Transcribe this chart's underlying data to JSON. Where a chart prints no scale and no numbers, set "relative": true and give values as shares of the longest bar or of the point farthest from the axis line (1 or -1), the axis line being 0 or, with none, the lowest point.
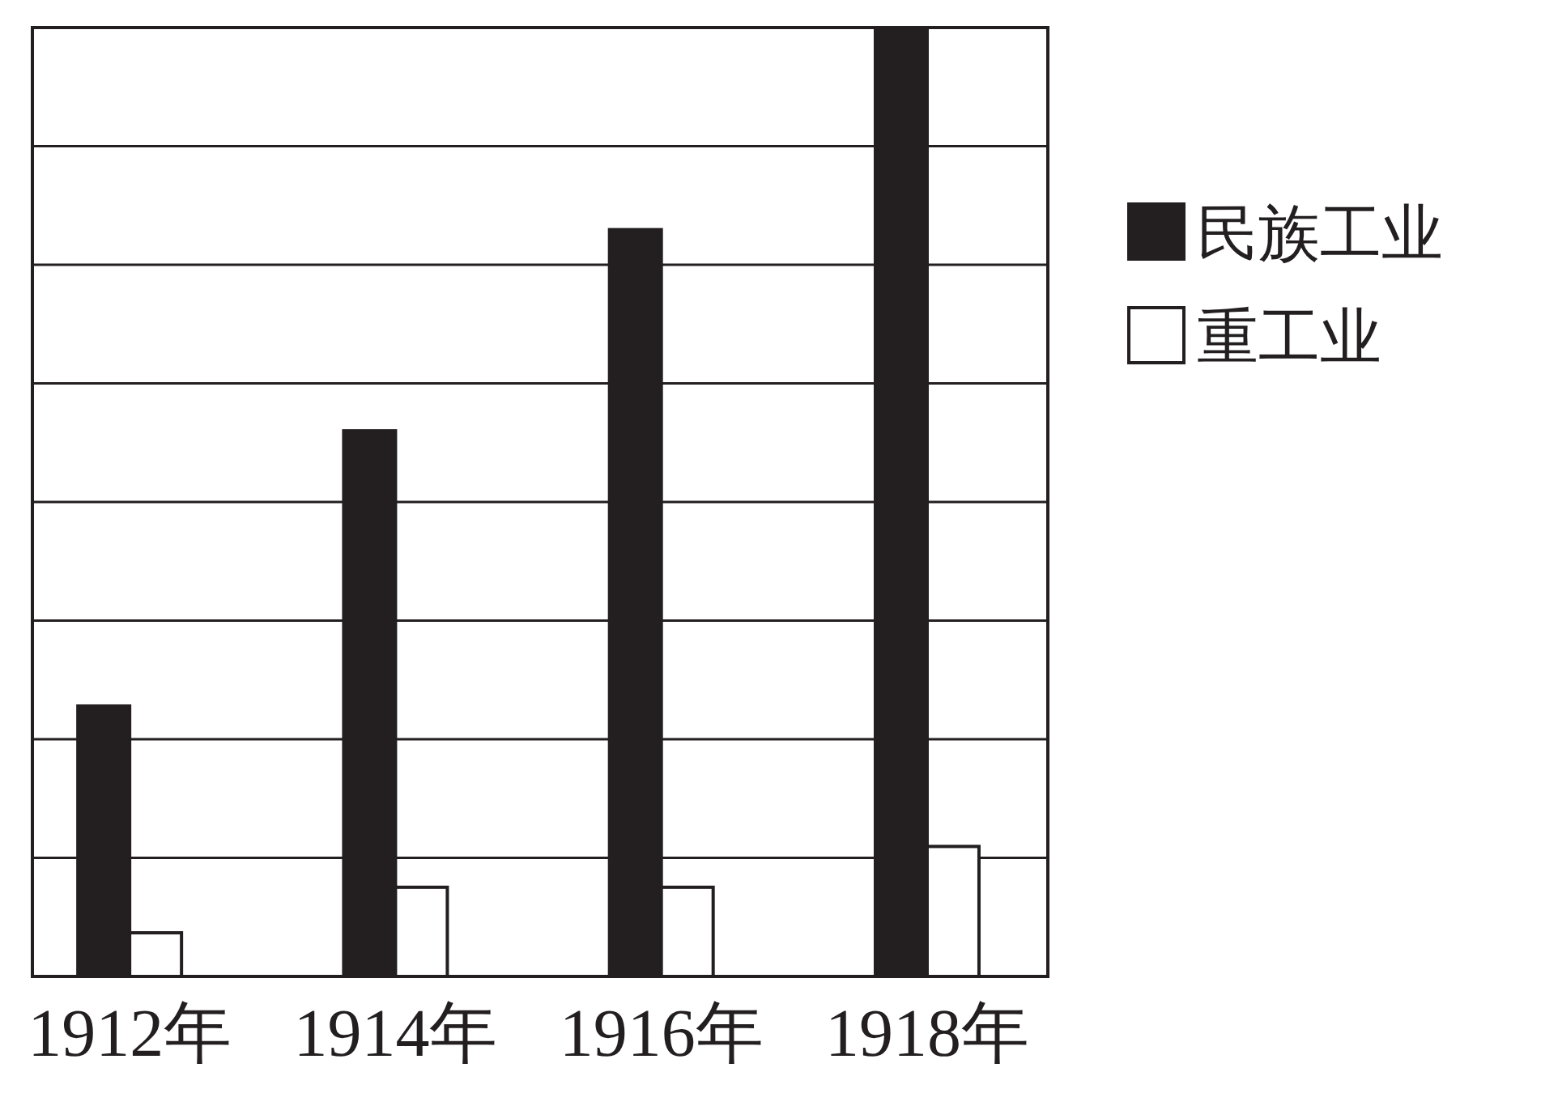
{
  "chart_data": {
    "type": "bar",
    "relative": true,
    "categories": [
      "1912年",
      "1914年",
      "1916年",
      "1918年"
    ],
    "series": [
      {
        "name": "民族工业",
        "color": "#231f20",
        "values": [
          0.285,
          0.575,
          0.787,
          1
        ]
      },
      {
        "name": "重工业",
        "color": "#ffffff",
        "values": [
          0.046,
          0.094,
          0.094,
          0.137
        ]
      }
    ],
    "grid": "y",
    "legend": "right"
  }
}
